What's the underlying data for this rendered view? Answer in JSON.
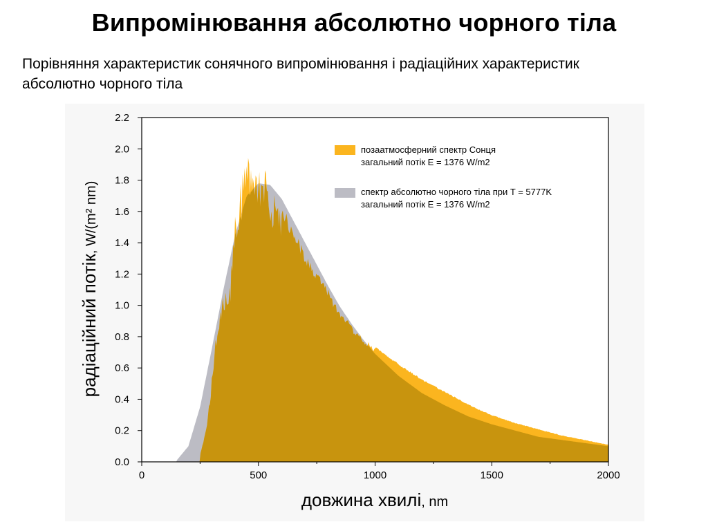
{
  "slide": {
    "title": "Випромінювання абсолютно чорного тіла",
    "subtitle": "Порівняння характеристик сонячного випромінювання і радіаційних характеристик абсолютно чорного тіла"
  },
  "chart_data": {
    "type": "area",
    "xlabel_main": "довжина хвилі",
    "xlabel_unit": ", nm",
    "ylabel_main": "радіаційний потік",
    "ylabel_unit": ", W/(m² nm)",
    "xlim": [
      0,
      2000
    ],
    "ylim": [
      0,
      2.2
    ],
    "x_ticks": [
      "0",
      "500",
      "1000",
      "1500",
      "2000"
    ],
    "y_ticks": [
      "0.0",
      "0.2",
      "0.4",
      "0.6",
      "0.8",
      "1.0",
      "1.2",
      "1.4",
      "1.6",
      "1.8",
      "2.0",
      "2.2"
    ],
    "grid": false,
    "legend_position": "top-right",
    "colors": {
      "solar": "#fbb51f",
      "blackbody": "#9c9ca6",
      "overlap": "#c8940e"
    },
    "series": [
      {
        "name": "позаатмосферний спектр Сонця",
        "note": "загальний потік E = 1376 W/m2",
        "x": [
          250,
          280,
          300,
          320,
          340,
          360,
          380,
          400,
          420,
          440,
          450,
          460,
          480,
          500,
          520,
          550,
          600,
          650,
          700,
          750,
          800,
          850,
          900,
          950,
          1000,
          1100,
          1200,
          1300,
          1400,
          1500,
          1600,
          1700,
          1800,
          1900,
          2000
        ],
        "values": [
          0.05,
          0.25,
          0.55,
          0.85,
          1.05,
          1.15,
          1.2,
          1.6,
          1.75,
          1.95,
          2.05,
          2.0,
          2.0,
          1.95,
          1.9,
          1.8,
          1.65,
          1.5,
          1.35,
          1.22,
          1.1,
          0.97,
          0.88,
          0.8,
          0.74,
          0.63,
          0.53,
          0.45,
          0.37,
          0.3,
          0.25,
          0.21,
          0.17,
          0.14,
          0.11
        ]
      },
      {
        "name": "спектр абсолютно чорного тіла при T = 5777K",
        "note": "загальний потік E = 1376 W/m2",
        "x": [
          150,
          200,
          250,
          300,
          350,
          400,
          450,
          500,
          550,
          600,
          650,
          700,
          750,
          800,
          850,
          900,
          950,
          1000,
          1100,
          1200,
          1300,
          1400,
          1500,
          1600,
          1700,
          1800,
          1900,
          2000
        ],
        "values": [
          0.01,
          0.1,
          0.35,
          0.72,
          1.1,
          1.45,
          1.7,
          1.78,
          1.77,
          1.68,
          1.54,
          1.4,
          1.26,
          1.12,
          0.99,
          0.88,
          0.78,
          0.69,
          0.55,
          0.44,
          0.36,
          0.29,
          0.24,
          0.2,
          0.16,
          0.14,
          0.12,
          0.1
        ]
      }
    ]
  }
}
